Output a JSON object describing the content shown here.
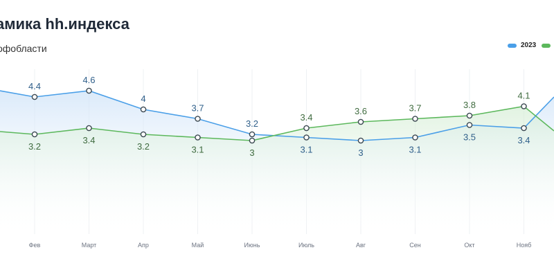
{
  "header": {
    "title": "амика hh.индекса",
    "subtitle": "офобласти"
  },
  "colors": {
    "series_2023": "#4a9fe8",
    "series_2024": "#5cb85c",
    "grid": "#eef0f3",
    "blue_fill": "#dbeafb",
    "green_fill": "#e3f3e3"
  },
  "chart_data": {
    "type": "line",
    "title": "амика hh.индекса",
    "subtitle": "офобласти",
    "categories": [
      "Фев",
      "Март",
      "Апр",
      "Май",
      "Июнь",
      "Июль",
      "Авг",
      "Сен",
      "Окт",
      "Нояб"
    ],
    "series": [
      {
        "name": "2023",
        "values": [
          4.4,
          4.6,
          4.0,
          3.7,
          3.2,
          3.1,
          3.0,
          3.1,
          3.5,
          3.4
        ]
      },
      {
        "name": "",
        "values": [
          3.2,
          3.4,
          3.2,
          3.1,
          3.0,
          3.4,
          3.6,
          3.7,
          3.8,
          4.1
        ]
      }
    ],
    "grid": "vertical",
    "legend_position": "top-right"
  }
}
